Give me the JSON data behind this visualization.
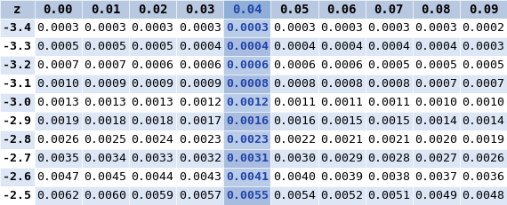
{
  "col_headers": [
    "z",
    "0.00",
    "0.01",
    "0.02",
    "0.03",
    "0.04",
    "0.05",
    "0.06",
    "0.07",
    "0.08",
    "0.09"
  ],
  "rows": [
    [
      "-3.4",
      "0.0003",
      "0.0003",
      "0.0003",
      "0.0003",
      "0.0003",
      "0.0003",
      "0.0003",
      "0.0003",
      "0.0003",
      "0.0002"
    ],
    [
      "-3.3",
      "0.0005",
      "0.0005",
      "0.0005",
      "0.0004",
      "0.0004",
      "0.0004",
      "0.0004",
      "0.0004",
      "0.0004",
      "0.0003"
    ],
    [
      "-3.2",
      "0.0007",
      "0.0007",
      "0.0006",
      "0.0006",
      "0.0006",
      "0.0006",
      "0.0006",
      "0.0005",
      "0.0005",
      "0.0005"
    ],
    [
      "-3.1",
      "0.0010",
      "0.0009",
      "0.0009",
      "0.0009",
      "0.0008",
      "0.0008",
      "0.0008",
      "0.0008",
      "0.0007",
      "0.0007"
    ],
    [
      "-3.0",
      "0.0013",
      "0.0013",
      "0.0013",
      "0.0012",
      "0.0012",
      "0.0011",
      "0.0011",
      "0.0011",
      "0.0010",
      "0.0010"
    ],
    [
      "-2.9",
      "0.0019",
      "0.0018",
      "0.0018",
      "0.0017",
      "0.0016",
      "0.0016",
      "0.0015",
      "0.0015",
      "0.0014",
      "0.0014"
    ],
    [
      "-2.8",
      "0.0026",
      "0.0025",
      "0.0024",
      "0.0023",
      "0.0023",
      "0.0022",
      "0.0021",
      "0.0021",
      "0.0020",
      "0.0019"
    ],
    [
      "-2.7",
      "0.0035",
      "0.0034",
      "0.0033",
      "0.0032",
      "0.0031",
      "0.0030",
      "0.0029",
      "0.0028",
      "0.0027",
      "0.0026"
    ],
    [
      "-2.6",
      "0.0047",
      "0.0045",
      "0.0044",
      "0.0043",
      "0.0041",
      "0.0040",
      "0.0039",
      "0.0038",
      "0.0037",
      "0.0036"
    ],
    [
      "-2.5",
      "0.0062",
      "0.0060",
      "0.0059",
      "0.0057",
      "0.0055",
      "0.0054",
      "0.0052",
      "0.0051",
      "0.0049",
      "0.0048"
    ]
  ],
  "highlight_col": 5,
  "header_bg": "#b8c8e0",
  "header_highlight_bg": "#8fafd8",
  "row_colors_even": "#ffffff",
  "row_colors_odd": "#dce6f5",
  "row_highlight_even": "#b8cce8",
  "row_highlight_odd": "#a8bce0",
  "z_col_even": "#dce6f5",
  "z_col_odd": "#ffffff",
  "header_text_color": "#000000",
  "cell_text_color": "#000000",
  "highlight_text_color": "#2244aa",
  "z_text_color": "#000000",
  "font_size": 9.5,
  "header_font_size": 10,
  "figsize": [
    5.7,
    2.31
  ],
  "dpi": 100
}
